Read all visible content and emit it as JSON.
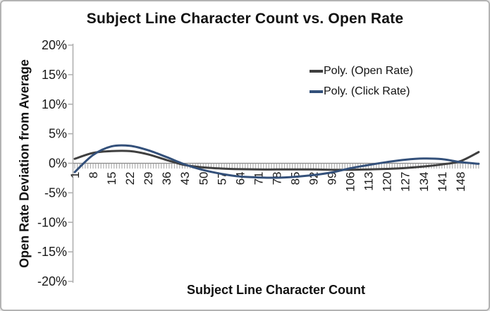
{
  "window": {
    "background": "#ffffff",
    "border_color": "#b3b3b3"
  },
  "chart_data": {
    "type": "line",
    "title": "Subject Line Character Count vs. Open Rate",
    "xlabel": "Subject Line Character Count",
    "ylabel": "Open Rate Deviation from Average",
    "legend_position": "upper right",
    "grid": false,
    "xlim": [
      1,
      155
    ],
    "ylim": [
      -20,
      20
    ],
    "y_tick_values": [
      20,
      15,
      10,
      5,
      0,
      -5,
      -10,
      -15,
      -20
    ],
    "y_tick_labels": [
      "20%",
      "15%",
      "10%",
      "5%",
      "0%",
      "-5%",
      "-10%",
      "-15%",
      "-20%"
    ],
    "x_ticks": [
      1,
      8,
      15,
      22,
      29,
      36,
      43,
      50,
      57,
      64,
      71,
      78,
      85,
      92,
      99,
      106,
      113,
      120,
      127,
      134,
      141,
      148
    ],
    "x": [
      1,
      8,
      15,
      22,
      29,
      36,
      43,
      50,
      57,
      64,
      71,
      78,
      85,
      92,
      99,
      106,
      113,
      120,
      127,
      134,
      141,
      148,
      155
    ],
    "series": [
      {
        "name": "Poly. (Open Rate)",
        "color": "#3f3f3f",
        "values": [
          0.75,
          1.75,
          2.05,
          2.05,
          1.5,
          0.55,
          -0.3,
          -0.7,
          -0.9,
          -1.0,
          -1.05,
          -1.05,
          -1.05,
          -1.05,
          -1.1,
          -1.1,
          -1.05,
          -0.95,
          -0.8,
          -0.55,
          -0.2,
          0.35,
          1.9
        ]
      },
      {
        "name": "Poly. (Click Rate)",
        "color": "#33507a",
        "values": [
          -1.5,
          1.4,
          2.85,
          2.95,
          2.2,
          1.05,
          -0.2,
          -1.15,
          -1.8,
          -2.25,
          -2.4,
          -2.45,
          -2.3,
          -2.0,
          -1.55,
          -0.85,
          -0.3,
          0.2,
          0.6,
          0.8,
          0.7,
          0.2,
          -0.1
        ]
      }
    ],
    "axis_colors": {
      "y_axis": "#b0b0b0",
      "x_axis": "#858585",
      "comb_ticks": "#a0a0a0"
    }
  }
}
